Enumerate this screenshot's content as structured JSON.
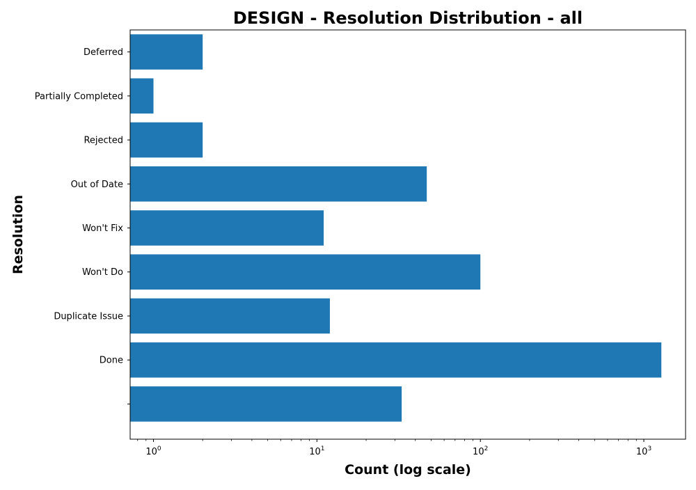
{
  "chart_data": {
    "type": "bar",
    "orientation": "horizontal",
    "title": "DESIGN - Resolution Distribution - all",
    "xlabel": "Count (log scale)",
    "ylabel": "Resolution",
    "x_scale": "log",
    "xlim": [
      0.72,
      1800
    ],
    "x_ticks": [
      {
        "value": 1,
        "base": "10",
        "exp": "0"
      },
      {
        "value": 10,
        "base": "10",
        "exp": "1"
      },
      {
        "value": 100,
        "base": "10",
        "exp": "2"
      },
      {
        "value": 1000,
        "base": "10",
        "exp": "3"
      }
    ],
    "categories": [
      "",
      "Done",
      "Duplicate Issue",
      "Won't Do",
      "Won't Fix",
      "Out of Date",
      "Rejected",
      "Partially Completed",
      "Deferred"
    ],
    "values": [
      33,
      1280,
      12,
      100,
      11,
      47,
      2,
      1,
      2
    ],
    "bar_color": "#1f77b4",
    "grid": false,
    "legend": "none"
  }
}
